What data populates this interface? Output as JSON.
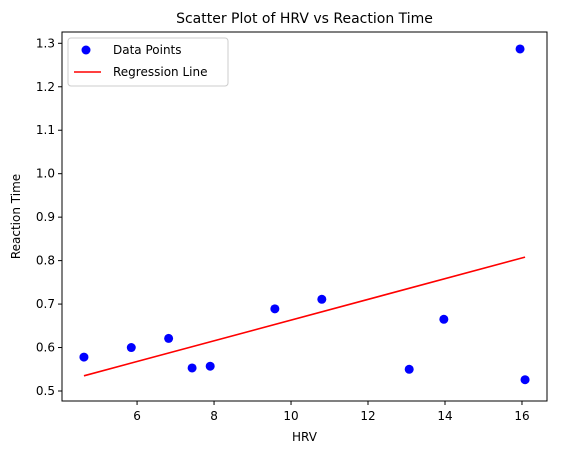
{
  "chart_data": {
    "type": "scatter",
    "title": "Scatter Plot of HRV vs Reaction Time",
    "xlabel": "HRV",
    "ylabel": "Reaction Time",
    "xlim": [
      4.05,
      16.65
    ],
    "ylim": [
      0.477,
      1.326
    ],
    "xticks": [
      6,
      8,
      10,
      12,
      14,
      16
    ],
    "yticks": [
      0.5,
      0.6,
      0.7,
      0.8,
      0.9,
      1.0,
      1.1,
      1.2,
      1.3
    ],
    "xtick_labels": [
      "6",
      "8",
      "10",
      "12",
      "14",
      "16"
    ],
    "ytick_labels": [
      "0.5",
      "0.6",
      "0.7",
      "0.8",
      "0.9",
      "1.0",
      "1.1",
      "1.2",
      "1.3"
    ],
    "grid": false,
    "legend_position": "top-left",
    "series": [
      {
        "name": "Data Points",
        "kind": "scatter",
        "color": "#0000ff",
        "points": [
          {
            "x": 4.62,
            "y": 0.578
          },
          {
            "x": 5.85,
            "y": 0.6
          },
          {
            "x": 6.82,
            "y": 0.621
          },
          {
            "x": 7.43,
            "y": 0.553
          },
          {
            "x": 7.9,
            "y": 0.557
          },
          {
            "x": 9.58,
            "y": 0.689
          },
          {
            "x": 10.8,
            "y": 0.711
          },
          {
            "x": 13.07,
            "y": 0.55
          },
          {
            "x": 13.97,
            "y": 0.665
          },
          {
            "x": 15.95,
            "y": 1.287
          },
          {
            "x": 16.08,
            "y": 0.526
          }
        ]
      },
      {
        "name": "Regression Line",
        "kind": "line",
        "color": "#ff0000",
        "points": [
          {
            "x": 4.62,
            "y": 0.535
          },
          {
            "x": 16.08,
            "y": 0.808
          }
        ]
      }
    ]
  }
}
